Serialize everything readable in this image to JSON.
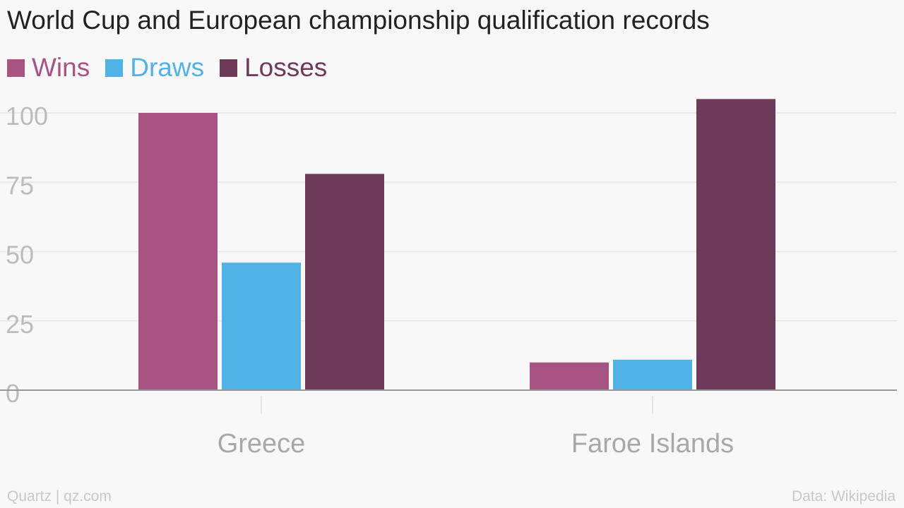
{
  "chart_data": {
    "type": "bar",
    "title": "World Cup and European championship qualification records",
    "categories": [
      "Greece",
      "Faroe Islands"
    ],
    "series": [
      {
        "name": "Wins",
        "color": "#a85483",
        "values": [
          100,
          10
        ]
      },
      {
        "name": "Draws",
        "color": "#51b2e5",
        "values": [
          46,
          11
        ]
      },
      {
        "name": "Losses",
        "color": "#6e3a59",
        "values": [
          78,
          105
        ]
      }
    ],
    "ylim": [
      0,
      105
    ],
    "yticks": [
      "0",
      "25",
      "50",
      "75",
      "100"
    ],
    "grid": true,
    "legend_position": "top-left",
    "xlabel": "",
    "ylabel": ""
  },
  "footer": {
    "source_left": "Quartz | qz.com",
    "source_right": "Data: Wikipedia"
  }
}
